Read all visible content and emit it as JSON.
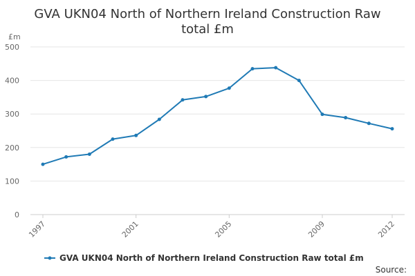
{
  "chart_data": {
    "type": "line",
    "title_lines": [
      "GVA UKN04 North of Northern Ireland Construction Raw",
      "total £m"
    ],
    "ylabel": "£m",
    "xlabel": "",
    "ylim": [
      0,
      500
    ],
    "yticks": [
      0,
      100,
      200,
      300,
      400,
      500
    ],
    "xlim": [
      1997,
      2012
    ],
    "xticks": [
      1997,
      2001,
      2005,
      2009,
      2012
    ],
    "grid": true,
    "legend_position": "bottom",
    "series": [
      {
        "name": "GVA UKN04 North of Northern Ireland Construction Raw total £m",
        "color": "#1f7ab5",
        "x": [
          1997,
          1998,
          1999,
          2000,
          2001,
          2002,
          2003,
          2004,
          2005,
          2006,
          2007,
          2008,
          2009,
          2010,
          2011,
          2012
        ],
        "values": [
          150,
          172,
          180,
          225,
          236,
          284,
          342,
          352,
          377,
          435,
          438,
          400,
          299,
          289,
          272,
          256
        ]
      }
    ],
    "source_label": "Source:"
  }
}
